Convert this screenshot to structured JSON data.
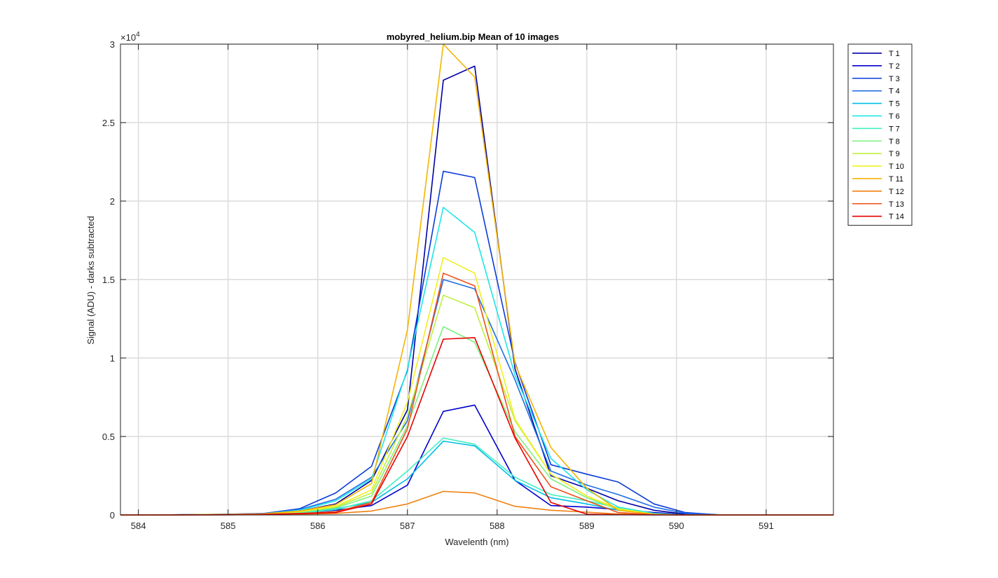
{
  "chart_data": {
    "type": "line",
    "title": "mobyred_helium.bip  Mean of 10 images",
    "xlabel": "Wavelenth (nm)",
    "ylabel": "Signal (ADU) - darks subtracted",
    "y_exponent_label": "×10",
    "y_exponent_power": "4",
    "xlim": [
      583.8,
      591.75
    ],
    "ylim": [
      0,
      30000
    ],
    "xticks": [
      584,
      585,
      586,
      587,
      588,
      589,
      590,
      591
    ],
    "xtick_labels": [
      "584",
      "585",
      "586",
      "587",
      "588",
      "589",
      "590",
      "591"
    ],
    "yticks": [
      0,
      5000,
      10000,
      15000,
      20000,
      25000,
      30000
    ],
    "ytick_labels": [
      "0",
      "0.5",
      "1",
      "1.5",
      "2",
      "2.5",
      "3"
    ],
    "grid": true,
    "legend_position": "outside-top-right",
    "x": [
      583.8,
      584.2,
      585.0,
      585.4,
      585.8,
      586.2,
      586.6,
      587.0,
      587.4,
      587.75,
      588.2,
      588.6,
      589.0,
      589.35,
      589.75,
      590.1,
      590.5,
      591.0,
      591.75
    ],
    "series": [
      {
        "name": "T 1",
        "color": "#0000a6",
        "values": [
          0,
          0,
          30,
          80,
          250,
          700,
          2200,
          6700,
          27700,
          28600,
          9300,
          2500,
          1700,
          900,
          300,
          50,
          0,
          0,
          0
        ]
      },
      {
        "name": "T 2",
        "color": "#0000cc",
        "values": [
          0,
          0,
          20,
          60,
          150,
          300,
          600,
          1900,
          6600,
          7000,
          2200,
          600,
          500,
          350,
          150,
          30,
          0,
          0,
          0
        ]
      },
      {
        "name": "T 3",
        "color": "#0a3cd9",
        "values": [
          0,
          0,
          50,
          100,
          400,
          1400,
          3100,
          9200,
          21900,
          21500,
          9700,
          3200,
          2600,
          2100,
          700,
          150,
          0,
          0,
          0
        ]
      },
      {
        "name": "T 4",
        "color": "#1e6ee6",
        "values": [
          0,
          0,
          40,
          90,
          350,
          1000,
          2400,
          6000,
          15000,
          14400,
          8600,
          2800,
          1900,
          1300,
          500,
          100,
          0,
          0,
          0
        ]
      },
      {
        "name": "T 5",
        "color": "#00bde6",
        "values": [
          0,
          0,
          20,
          40,
          150,
          400,
          800,
          2300,
          4700,
          4400,
          2200,
          1100,
          700,
          300,
          80,
          0,
          0,
          0,
          0
        ]
      },
      {
        "name": "T 6",
        "color": "#1ee6e6",
        "values": [
          0,
          0,
          30,
          70,
          300,
          900,
          2300,
          9300,
          19600,
          18000,
          8900,
          3600,
          1600,
          500,
          100,
          0,
          0,
          0,
          0
        ]
      },
      {
        "name": "T 7",
        "color": "#40f0c0",
        "values": [
          0,
          0,
          20,
          40,
          120,
          350,
          900,
          2800,
          4900,
          4500,
          2400,
          1300,
          900,
          450,
          60,
          0,
          0,
          0,
          0
        ]
      },
      {
        "name": "T 8",
        "color": "#80f080",
        "values": [
          0,
          0,
          20,
          50,
          180,
          450,
          1200,
          5700,
          12000,
          11000,
          5300,
          2300,
          1100,
          350,
          40,
          0,
          0,
          0,
          0
        ]
      },
      {
        "name": "T 9",
        "color": "#bff040",
        "values": [
          0,
          0,
          20,
          50,
          200,
          500,
          1400,
          6300,
          14000,
          13200,
          6000,
          2600,
          1200,
          350,
          40,
          0,
          0,
          0,
          0
        ]
      },
      {
        "name": "T 10",
        "color": "#f0f020",
        "values": [
          0,
          0,
          25,
          60,
          220,
          550,
          1600,
          7200,
          16400,
          15400,
          6100,
          2600,
          1200,
          400,
          40,
          0,
          0,
          0,
          0
        ]
      },
      {
        "name": "T 11",
        "color": "#f5b400",
        "values": [
          0,
          0,
          30,
          70,
          250,
          650,
          2000,
          11800,
          30000,
          27900,
          9600,
          4300,
          1700,
          300,
          40,
          0,
          0,
          0,
          0
        ]
      },
      {
        "name": "T 12",
        "color": "#f08010",
        "values": [
          0,
          0,
          10,
          20,
          50,
          100,
          250,
          700,
          1500,
          1400,
          550,
          300,
          180,
          60,
          20,
          0,
          0,
          0,
          0
        ]
      },
      {
        "name": "T 13",
        "color": "#f05018",
        "values": [
          0,
          0,
          15,
          35,
          100,
          200,
          800,
          5500,
          15400,
          14600,
          5000,
          1800,
          900,
          150,
          20,
          0,
          0,
          0,
          0
        ]
      },
      {
        "name": "T 14",
        "color": "#e60000",
        "values": [
          0,
          0,
          10,
          30,
          80,
          150,
          700,
          5000,
          11200,
          11300,
          4900,
          800,
          50,
          20,
          0,
          0,
          0,
          0,
          0
        ]
      }
    ]
  }
}
